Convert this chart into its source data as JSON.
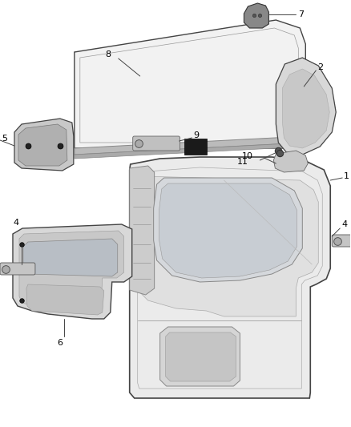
{
  "bg_color": "#ffffff",
  "line_color": "#444444",
  "label_color": "#000000",
  "fig_w": 4.38,
  "fig_h": 5.33
}
